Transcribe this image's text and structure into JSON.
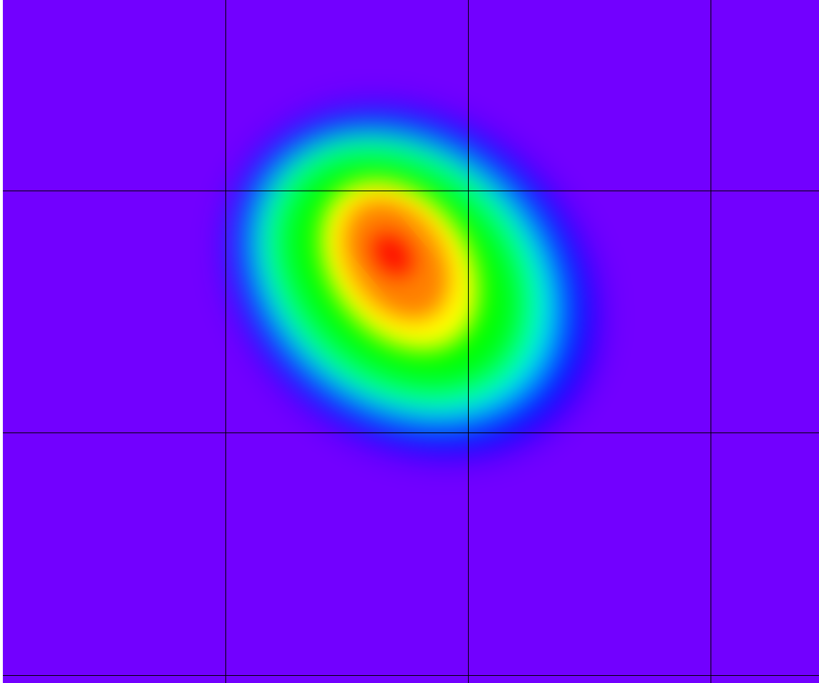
{
  "chart_data": {
    "type": "heatmap",
    "title": "",
    "xlabel": "",
    "ylabel": "",
    "grid": true,
    "legend": "none",
    "colors": {
      "background": "#7200FF",
      "gridline": "#000000",
      "colormap": [
        "#7200FF",
        "#0000FF",
        "#00FFFF",
        "#00FF00",
        "#FFFF00",
        "#FF8000",
        "#FF0000"
      ]
    },
    "hotspot": {
      "shape": "tilted-oval",
      "peak_level": 0.97,
      "peak_color": "red",
      "extent_columns": [
        0.9,
        2.6
      ],
      "extent_rows": [
        0.4,
        2.0
      ]
    }
  }
}
